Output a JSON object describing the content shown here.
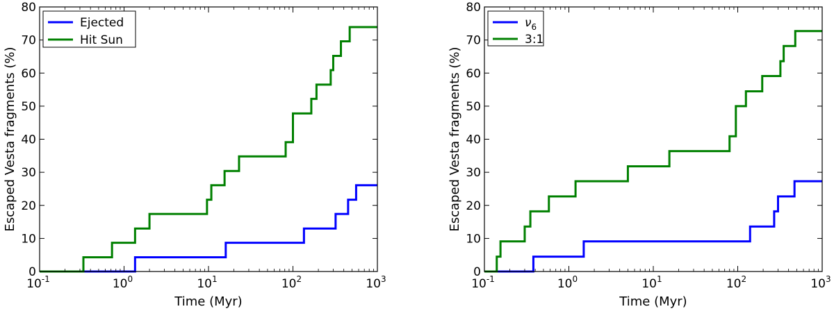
{
  "colors": {
    "blue": "#0000ff",
    "green": "#008000"
  },
  "chart_data": [
    {
      "type": "line",
      "step": true,
      "xscale": "log",
      "xlim": [
        0.1,
        1000
      ],
      "ylim": [
        0,
        80
      ],
      "xlabel": "Time (Myr)",
      "ylabel": "Escaped Vesta fragments (%)",
      "grid": false,
      "legend_position": "top-left",
      "x_ticks": [
        {
          "base": "10",
          "exp": "-1"
        },
        {
          "base": "10",
          "exp": "0"
        },
        {
          "base": "10",
          "exp": "1"
        },
        {
          "base": "10",
          "exp": "2"
        },
        {
          "base": "10",
          "exp": "3"
        }
      ],
      "y_ticks": [
        "0",
        "10",
        "20",
        "30",
        "40",
        "50",
        "60",
        "70",
        "80"
      ],
      "series": [
        {
          "name": "Ejected",
          "color": "#0000ff",
          "x": [
            0.1,
            1.35,
            1.35,
            16,
            16,
            135,
            135,
            320,
            320,
            450,
            450,
            560,
            560,
            1000
          ],
          "y": [
            0,
            0,
            4.3,
            4.3,
            8.7,
            8.7,
            13,
            13,
            17.4,
            17.4,
            21.7,
            21.7,
            26.1,
            26.1
          ]
        },
        {
          "name": "Hit Sun",
          "color": "#008000",
          "x": [
            0.1,
            0.33,
            0.33,
            0.72,
            0.72,
            1.35,
            1.35,
            2.0,
            2.0,
            9.6,
            9.6,
            10.8,
            10.8,
            15.5,
            15.5,
            23,
            23,
            82,
            82,
            100,
            100,
            165,
            165,
            190,
            190,
            280,
            280,
            300,
            300,
            370,
            370,
            470,
            470,
            1000
          ],
          "y": [
            0,
            0,
            4.3,
            4.3,
            8.7,
            8.7,
            13,
            13,
            17.4,
            17.4,
            21.7,
            21.7,
            26.1,
            26.1,
            30.4,
            30.4,
            34.8,
            34.8,
            39.1,
            39.1,
            47.8,
            47.8,
            52.2,
            52.2,
            56.5,
            56.5,
            60.9,
            60.9,
            65.2,
            65.2,
            69.6,
            69.6,
            73.9,
            73.9
          ]
        }
      ]
    },
    {
      "type": "line",
      "step": true,
      "xscale": "log",
      "xlim": [
        0.1,
        1000
      ],
      "ylim": [
        0,
        80
      ],
      "xlabel": "Time (Myr)",
      "ylabel": "Escaped Vesta fragments (%)",
      "grid": false,
      "legend_position": "top-left",
      "x_ticks": [
        {
          "base": "10",
          "exp": "-1"
        },
        {
          "base": "10",
          "exp": "0"
        },
        {
          "base": "10",
          "exp": "1"
        },
        {
          "base": "10",
          "exp": "2"
        },
        {
          "base": "10",
          "exp": "3"
        }
      ],
      "y_ticks": [
        "0",
        "10",
        "20",
        "30",
        "40",
        "50",
        "60",
        "70",
        "80"
      ],
      "series": [
        {
          "name": "ν",
          "name_subscript": "6",
          "color": "#0000ff",
          "x": [
            0.1,
            0.38,
            0.38,
            1.5,
            1.5,
            140,
            140,
            270,
            270,
            300,
            300,
            470,
            470,
            1000
          ],
          "y": [
            0,
            0,
            4.5,
            4.5,
            9.1,
            9.1,
            13.6,
            13.6,
            18.2,
            18.2,
            22.7,
            22.7,
            27.3,
            27.3
          ]
        },
        {
          "name": "3:1",
          "color": "#008000",
          "x": [
            0.1,
            0.14,
            0.14,
            0.155,
            0.155,
            0.3,
            0.3,
            0.35,
            0.35,
            0.58,
            0.58,
            1.2,
            1.2,
            5.0,
            5.0,
            15.5,
            15.5,
            80,
            80,
            95,
            95,
            125,
            125,
            195,
            195,
            320,
            320,
            350,
            350,
            480,
            480,
            1000
          ],
          "y": [
            0,
            0,
            4.5,
            4.5,
            9.1,
            9.1,
            13.6,
            13.6,
            18.2,
            18.2,
            22.7,
            22.7,
            27.3,
            27.3,
            31.8,
            31.8,
            36.4,
            36.4,
            40.9,
            40.9,
            50,
            50,
            54.5,
            54.5,
            59.1,
            59.1,
            63.6,
            63.6,
            68.2,
            68.2,
            72.7,
            72.7
          ]
        }
      ]
    }
  ]
}
